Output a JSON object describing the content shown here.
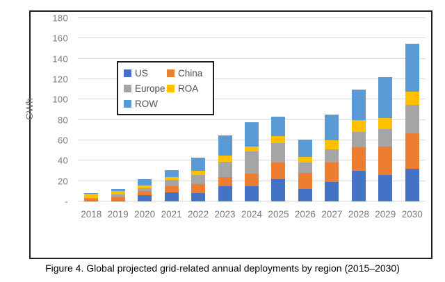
{
  "figure": {
    "caption": "Figure 4. Global projected grid-related annual deployments by region (2015–2030)"
  },
  "colors": {
    "gridline": "#d9d9d9",
    "axis_text": "#7b7b7b",
    "box_border": "#1f1f1f",
    "background": "#ffffff"
  },
  "chart_data": {
    "type": "bar",
    "stacked": true,
    "title": "",
    "xlabel": "",
    "ylabel": "GWh",
    "ylim": [
      0,
      180
    ],
    "ytick_interval": 20,
    "ytick_labels": [
      "-",
      "20",
      "40",
      "60",
      "80",
      "100",
      "120",
      "140",
      "160",
      "180"
    ],
    "grid": true,
    "legend_position": "inside-upper-left",
    "legend_order": [
      "US",
      "China",
      "Europe",
      "ROA",
      "ROW"
    ],
    "categories": [
      "2018",
      "2019",
      "2020",
      "2021",
      "2022",
      "2023",
      "2024",
      "2025",
      "2026",
      "2027",
      "2028",
      "2029",
      "2030"
    ],
    "series": [
      {
        "name": "US",
        "color": "#4472C4",
        "values": [
          0.5,
          1,
          6,
          9,
          8,
          15,
          15,
          22,
          12,
          19,
          30,
          26,
          32
        ]
      },
      {
        "name": "China",
        "color": "#ED7D31",
        "values": [
          2,
          3,
          4,
          6,
          9,
          9,
          12,
          16,
          16,
          19,
          23,
          28,
          35
        ]
      },
      {
        "name": "Europe",
        "color": "#A5A5A5",
        "values": [
          1,
          3,
          3,
          6,
          9,
          15,
          22,
          19,
          10,
          13,
          15,
          17,
          28
        ]
      },
      {
        "name": "ROA",
        "color": "#FFC000",
        "values": [
          4,
          3,
          3,
          3,
          4,
          6,
          5,
          7,
          6,
          9,
          12,
          11,
          13
        ]
      },
      {
        "name": "ROW",
        "color": "#5B9BD5",
        "values": [
          0.5,
          2,
          6,
          7,
          13,
          20,
          24,
          19,
          17,
          25,
          30,
          40,
          47
        ]
      }
    ],
    "totals": [
      8,
      12,
      22,
      31,
      43,
      65,
      78,
      83,
      61,
      85,
      110,
      122,
      155
    ]
  }
}
